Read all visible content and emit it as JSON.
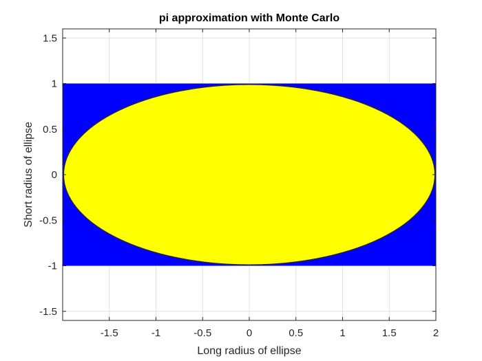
{
  "chart_data": {
    "type": "scatter",
    "title": "pi approximation with Monte Carlo",
    "xlabel": "Long radius of ellipse",
    "ylabel": "Short radius of ellipse",
    "xlim": [
      -2,
      2
    ],
    "ylim": [
      -1.6,
      1.6
    ],
    "xticks": [
      -1.5,
      -1,
      -0.5,
      0,
      0.5,
      1,
      1.5,
      2
    ],
    "xtick_labels": [
      "-1.5",
      "-1",
      "-0.5",
      "0",
      "0.5",
      "1",
      "1.5",
      "2"
    ],
    "yticks": [
      -1.5,
      -1,
      -0.5,
      0,
      0.5,
      1,
      1.5
    ],
    "ytick_labels": [
      "-1.5",
      "-1",
      "-0.5",
      "0",
      "0.5",
      "1",
      "1.5"
    ],
    "grid": true,
    "regions": {
      "sample_rectangle": {
        "x_range": [
          -2,
          2
        ],
        "y_range": [
          -1,
          1
        ],
        "color": "#0000ff"
      },
      "ellipse": {
        "center": [
          0,
          0
        ],
        "semi_major_axis": 2,
        "semi_minor_axis": 1,
        "color": "#ffff00",
        "edge_color": "#1a1a6e"
      }
    },
    "series": [
      {
        "values": "points outside ellipse (within rectangle)",
        "color": "#0000ff"
      },
      {
        "values": "points inside ellipse",
        "color": "#ffff00"
      }
    ]
  },
  "colors": {
    "background": "#ffffff",
    "axes_box": "#262626",
    "grid": "#e0e0e0",
    "outside_points": "#0000ff",
    "inside_points": "#ffff00"
  }
}
